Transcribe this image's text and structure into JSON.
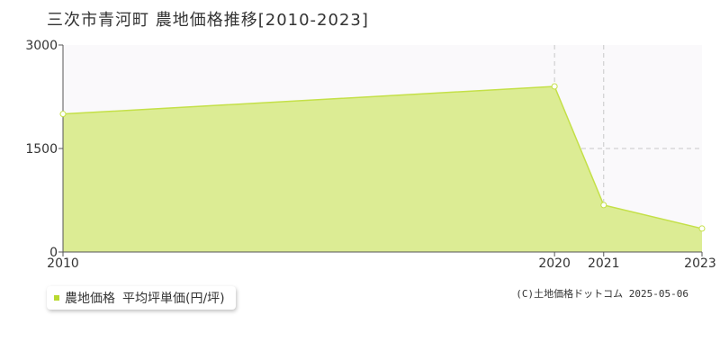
{
  "title": "三次市青河町 農地価格推移[2010-2023]",
  "legend": {
    "series_name": "農地価格",
    "unit_label": "平均坪単価(円/坪)"
  },
  "copyright": "(C)土地価格ドットコム 2025-05-06",
  "colors": {
    "fill": "#dcec94",
    "line": "#c4e048",
    "swatch": "#b9d930",
    "plot_bg": "#faf9fb",
    "grid": "#c8c8c8"
  },
  "chart_data": {
    "type": "area",
    "x": [
      "2010",
      "2020",
      "2021",
      "2023"
    ],
    "series": [
      {
        "name": "農地価格",
        "values": [
          2000,
          2400,
          680,
          340
        ]
      }
    ],
    "ylim": [
      0,
      3000
    ],
    "y_ticks": [
      "0",
      "1500",
      "3000"
    ],
    "x_ticks": [
      "2010",
      "2020",
      "2021",
      "2023"
    ],
    "grid": true,
    "legend_position": "bottom-left"
  }
}
